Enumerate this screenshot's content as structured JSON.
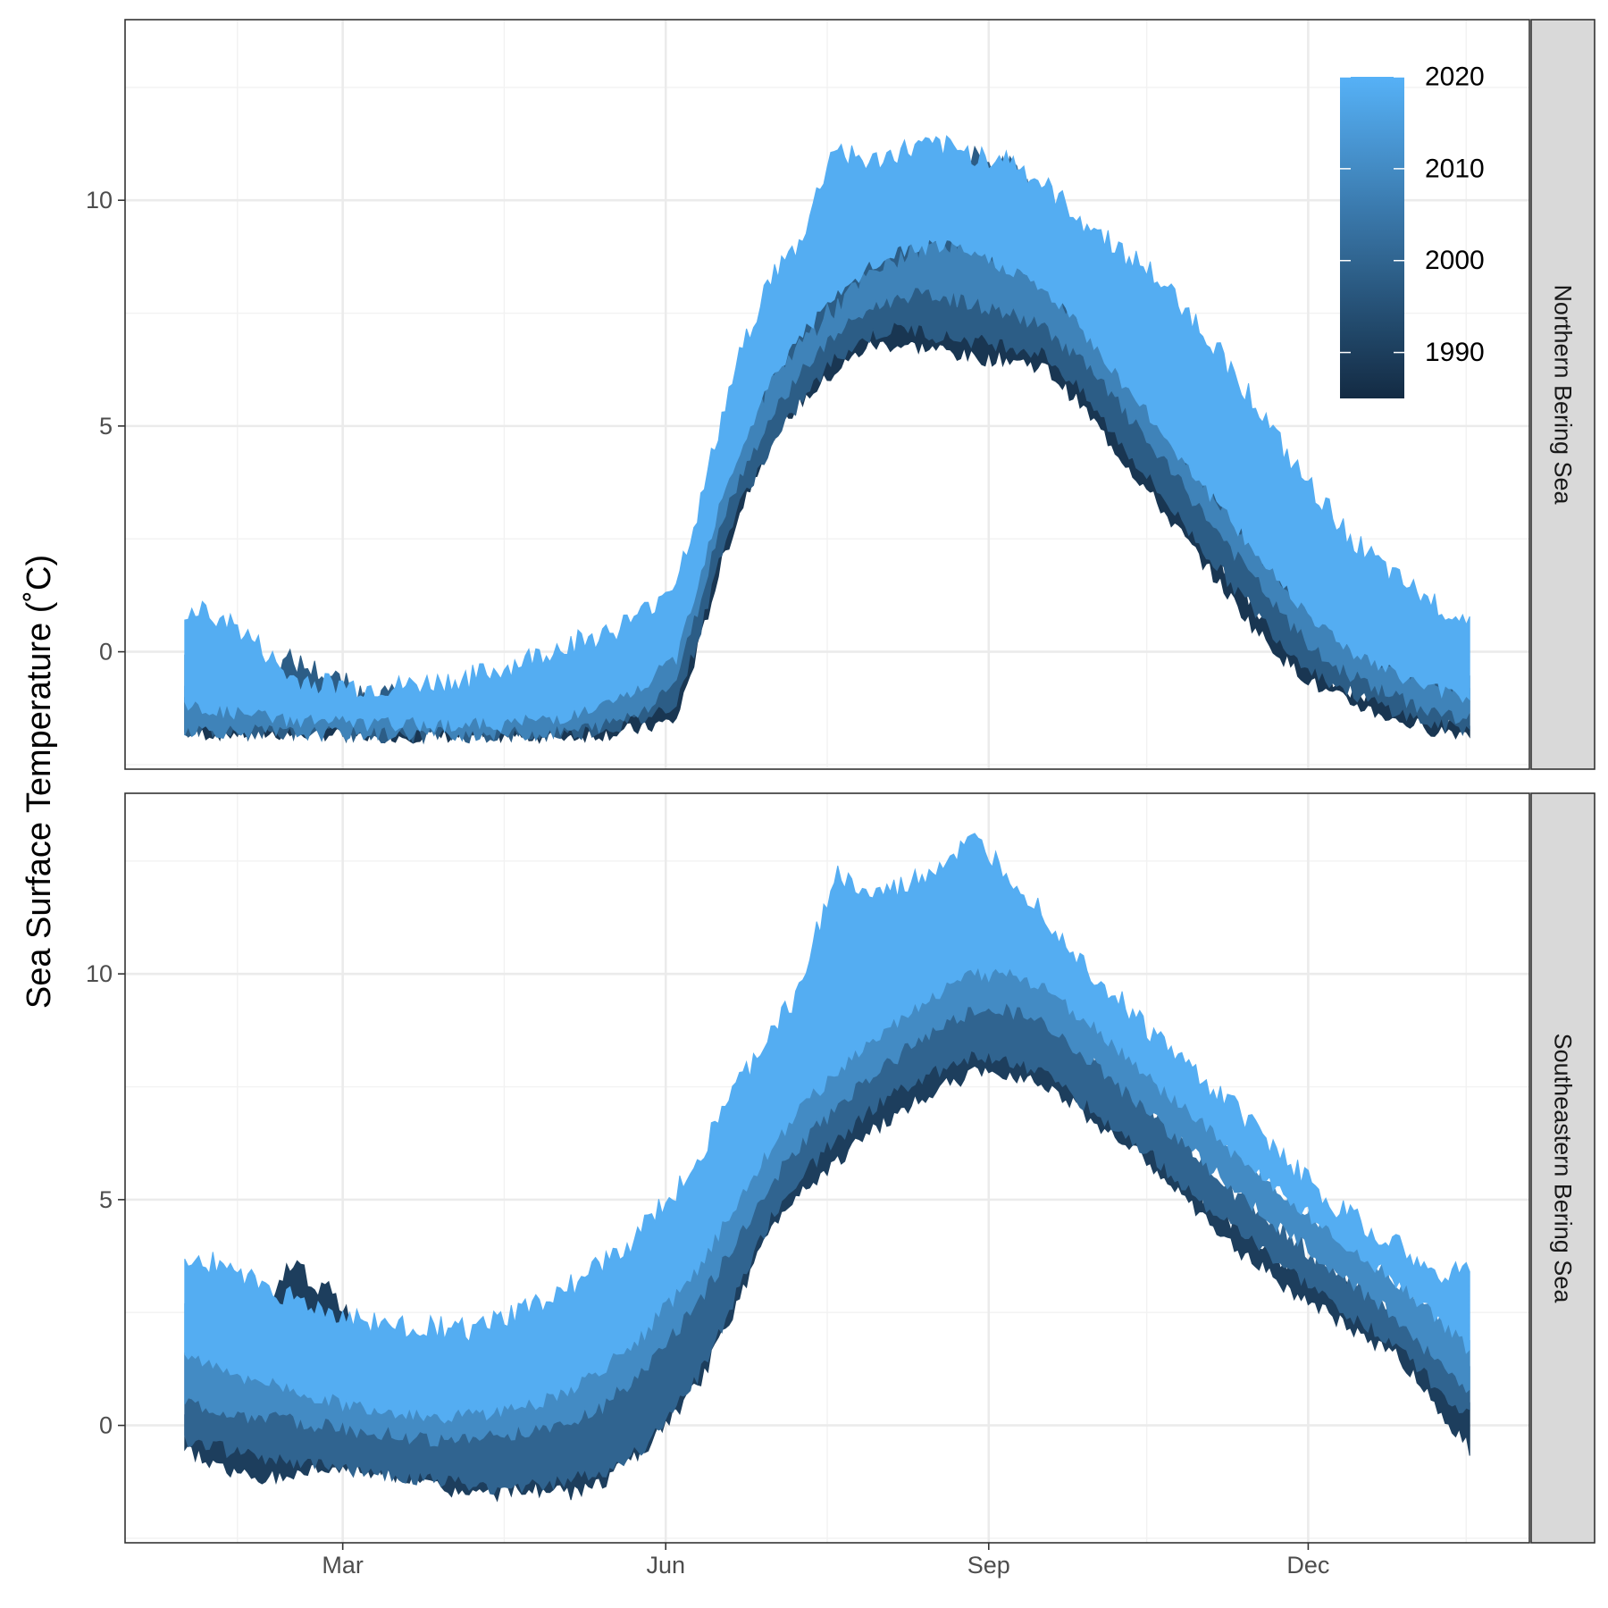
{
  "chart_data": {
    "type": "area",
    "title": "",
    "xlabel": "",
    "ylabel": "Sea Surface Temperature (˚C)",
    "x_tick_labels": [
      "Mar",
      "Jun",
      "Sep",
      "Dec"
    ],
    "x_tick_days": [
      60,
      152,
      244,
      335
    ],
    "x_minor_days": [
      30,
      106,
      198,
      289,
      380
    ],
    "xlim_day_of_year": [
      -2,
      398
    ],
    "x_data_range_day_of_year": [
      15,
      381
    ],
    "y_ticks": [
      0,
      5,
      10
    ],
    "y_minor_ticks": [
      -2.5,
      2.5,
      7.5,
      12.5
    ],
    "ylim": [
      -2.6,
      14
    ],
    "grid": true,
    "color_scale": {
      "title": "",
      "variable": "year",
      "breaks": [
        1990,
        2000,
        2010,
        2020
      ],
      "range": [
        1985,
        2020
      ],
      "low_color": "#132b43",
      "high_color": "#56b1f7",
      "legend_position": "top-right"
    },
    "description": "",
    "panels": [
      {
        "region": "Northern Bering Sea",
        "series": [
          {
            "x": [
              15,
              25,
              35,
              45,
              55,
              65,
              75,
              85,
              95,
              105,
              115,
              125,
              135,
              145,
              155,
              162,
              168,
              175,
              182,
              190,
              200,
              210,
              220,
              230,
              240,
              250,
              260,
              270,
              280,
              290,
              300,
              310,
              320,
              330,
              340,
              350,
              360,
              370,
              381
            ],
            "envelope": [
              {
                "year": 1988,
                "lower": [
                  -1.8,
                  -1.8,
                  -1.8,
                  -1.8,
                  -1.8,
                  -1.85,
                  -1.85,
                  -1.85,
                  -1.85,
                  -1.85,
                  -1.85,
                  -1.85,
                  -1.8,
                  -1.7,
                  -1.5,
                  0.3,
                  2.0,
                  3.5,
                  4.8,
                  5.5,
                  6.2,
                  6.8,
                  6.8,
                  6.7,
                  6.5,
                  6.5,
                  6.3,
                  5.5,
                  4.5,
                  3.5,
                  2.5,
                  1.5,
                  0.5,
                  -0.3,
                  -0.9,
                  -1.2,
                  -1.5,
                  -1.7,
                  -1.8
                ],
                "upper": [
                  -1.0,
                  -0.8,
                  -0.7,
                  -0.6,
                  -0.9,
                  -1.1,
                  -1.2,
                  -1.3,
                  -1.4,
                  -1.4,
                  -1.3,
                  -1.2,
                  -1.1,
                  -0.9,
                  -0.6,
                  1.0,
                  2.8,
                  4.2,
                  5.5,
                  6.3,
                  7.0,
                  7.6,
                  8.0,
                  8.2,
                  7.9,
                  7.6,
                  7.0,
                  6.2,
                  5.2,
                  4.2,
                  3.1,
                  2.0,
                  1.0,
                  0.1,
                  -0.5,
                  -0.9,
                  -1.2,
                  -1.4,
                  -1.5
                ]
              },
              {
                "year": 1998,
                "lower": [
                  -1.75,
                  -1.75,
                  -1.8,
                  -1.8,
                  -1.8,
                  -1.85,
                  -1.85,
                  -1.85,
                  -1.85,
                  -1.85,
                  -1.85,
                  -1.8,
                  -1.7,
                  -1.5,
                  -1.1,
                  0.5,
                  2.3,
                  3.6,
                  4.5,
                  5.5,
                  6.5,
                  7.0,
                  7.2,
                  7.0,
                  6.9,
                  6.8,
                  6.6,
                  5.8,
                  4.8,
                  3.8,
                  2.8,
                  1.8,
                  0.9,
                  0.0,
                  -0.6,
                  -1.0,
                  -1.3,
                  -1.6,
                  -1.7
                ],
                "upper": [
                  0.0,
                  -0.4,
                  -0.6,
                  -0.2,
                  -0.5,
                  -0.9,
                  -1.0,
                  -1.1,
                  -1.2,
                  -1.2,
                  -1.1,
                  -1.0,
                  -0.8,
                  -0.4,
                  0.3,
                  2.2,
                  4.0,
                  5.5,
                  6.8,
                  7.5,
                  8.2,
                  8.8,
                  9.4,
                  10.6,
                  11.0,
                  10.7,
                  9.8,
                  8.8,
                  7.6,
                  6.5,
                  5.3,
                  4.2,
                  3.1,
                  2.1,
                  1.2,
                  0.6,
                  0.2,
                  -0.2,
                  -0.4
                ]
              },
              {
                "year": 2008,
                "lower": [
                  -1.7,
                  -1.75,
                  -1.75,
                  -1.8,
                  -1.8,
                  -1.8,
                  -1.8,
                  -1.8,
                  -1.8,
                  -1.8,
                  -1.8,
                  -1.75,
                  -1.6,
                  -1.3,
                  -0.6,
                  1.2,
                  3.0,
                  4.2,
                  5.2,
                  6.2,
                  7.0,
                  7.6,
                  7.9,
                  7.9,
                  7.7,
                  7.5,
                  7.2,
                  6.5,
                  5.6,
                  4.6,
                  3.6,
                  2.6,
                  1.6,
                  0.6,
                  -0.2,
                  -0.6,
                  -1.0,
                  -1.3,
                  -1.5
                ],
                "upper": [
                  -0.6,
                  -0.7,
                  -0.9,
                  -1.0,
                  -1.1,
                  -1.2,
                  -1.3,
                  -1.3,
                  -1.3,
                  -1.2,
                  -1.1,
                  -0.9,
                  -0.6,
                  -0.2,
                  0.6,
                  2.2,
                  3.8,
                  5.0,
                  6.0,
                  6.8,
                  7.6,
                  8.3,
                  8.8,
                  9.1,
                  9.0,
                  8.7,
                  8.2,
                  7.4,
                  6.4,
                  5.4,
                  4.3,
                  3.3,
                  2.3,
                  1.4,
                  0.7,
                  0.1,
                  -0.3,
                  -0.7,
                  -1.0
                ]
              },
              {
                "year": 2019,
                "lower": [
                  -1.2,
                  -1.3,
                  -1.4,
                  -1.5,
                  -1.5,
                  -1.6,
                  -1.6,
                  -1.6,
                  -1.6,
                  -1.6,
                  -1.5,
                  -1.4,
                  -1.2,
                  -0.8,
                  -0.1,
                  1.8,
                  3.5,
                  4.8,
                  6.0,
                  7.0,
                  7.8,
                  8.5,
                  8.9,
                  9.0,
                  8.8,
                  8.5,
                  8.0,
                  7.2,
                  6.2,
                  5.2,
                  4.2,
                  3.2,
                  2.2,
                  1.3,
                  0.5,
                  -0.1,
                  -0.5,
                  -0.8,
                  -1.0
                ],
                "upper": [
                  0.9,
                  0.8,
                  0.2,
                  -0.6,
                  -0.7,
                  -0.8,
                  -0.8,
                  -0.7,
                  -0.6,
                  -0.4,
                  -0.1,
                  0.2,
                  0.4,
                  0.8,
                  1.6,
                  3.3,
                  5.2,
                  7.0,
                  8.3,
                  9.0,
                  11.2,
                  10.8,
                  11.1,
                  11.2,
                  11.0,
                  10.9,
                  10.3,
                  9.6,
                  9.0,
                  8.4,
                  7.6,
                  6.6,
                  5.5,
                  4.2,
                  3.2,
                  2.3,
                  1.6,
                  1.1,
                  0.7
                ]
              }
            ]
          }
        ]
      },
      {
        "region": "Southeastern Bering Sea",
        "series": [
          {
            "x": [
              15,
              25,
              35,
              45,
              55,
              65,
              75,
              85,
              95,
              105,
              115,
              125,
              135,
              145,
              155,
              162,
              168,
              175,
              182,
              190,
              200,
              210,
              220,
              230,
              240,
              250,
              260,
              270,
              280,
              290,
              300,
              310,
              320,
              330,
              340,
              350,
              360,
              370,
              381
            ],
            "envelope": [
              {
                "year": 1990,
                "lower": [
                  -0.5,
                  -0.9,
                  -1.2,
                  -1.1,
                  -0.9,
                  -1.0,
                  -1.1,
                  -1.3,
                  -1.5,
                  -1.5,
                  -1.4,
                  -1.5,
                  -1.2,
                  -0.6,
                  0.3,
                  1.0,
                  2.0,
                  3.2,
                  4.4,
                  5.2,
                  5.8,
                  6.5,
                  7.0,
                  7.5,
                  7.8,
                  7.8,
                  7.6,
                  7.0,
                  6.4,
                  5.8,
                  5.0,
                  4.2,
                  3.6,
                  3.0,
                  2.5,
                  2.0,
                  1.6,
                  0.6,
                  -0.5
                ],
                "upper": [
                  0.1,
                  0.0,
                  1.5,
                  3.6,
                  3.0,
                  2.2,
                  1.9,
                  1.7,
                  1.5,
                  1.4,
                  1.6,
                  2.0,
                  2.6,
                  3.3,
                  4.2,
                  4.9,
                  5.6,
                  6.3,
                  7.0,
                  7.4,
                  7.8,
                  8.2,
                  8.6,
                  9.0,
                  9.1,
                  8.9,
                  8.5,
                  7.8,
                  7.1,
                  6.3,
                  5.5,
                  4.7,
                  4.1,
                  3.6,
                  3.2,
                  2.8,
                  2.4,
                  1.5,
                  0.6
                ]
              },
              {
                "year": 2000,
                "lower": [
                  -0.3,
                  -0.5,
                  -0.7,
                  -0.8,
                  -0.9,
                  -1.0,
                  -1.1,
                  -1.2,
                  -1.3,
                  -1.4,
                  -1.3,
                  -1.2,
                  -1.0,
                  -0.5,
                  0.4,
                  1.2,
                  2.2,
                  3.4,
                  4.6,
                  5.5,
                  6.3,
                  7.0,
                  7.5,
                  7.9,
                  8.2,
                  8.1,
                  7.8,
                  7.2,
                  6.6,
                  6.0,
                  5.3,
                  4.6,
                  4.0,
                  3.4,
                  2.8,
                  2.3,
                  1.8,
                  1.0,
                  0.2
                ],
                "upper": [
                  1.8,
                  1.7,
                  1.5,
                  1.2,
                  1.0,
                  0.8,
                  0.7,
                  0.6,
                  0.6,
                  0.7,
                  0.9,
                  1.2,
                  1.7,
                  2.4,
                  3.3,
                  4.0,
                  4.8,
                  5.6,
                  6.4,
                  7.0,
                  7.6,
                  8.2,
                  8.8,
                  9.4,
                  9.8,
                  9.7,
                  9.3,
                  8.6,
                  7.9,
                  7.1,
                  6.3,
                  5.5,
                  4.8,
                  4.2,
                  3.6,
                  3.1,
                  2.6,
                  2.0,
                  1.2
                ]
              },
              {
                "year": 2010,
                "lower": [
                  0.5,
                  0.3,
                  0.2,
                  0.1,
                  0.0,
                  -0.1,
                  -0.2,
                  -0.3,
                  -0.3,
                  -0.2,
                  -0.1,
                  0.1,
                  0.5,
                  1.2,
                  2.1,
                  2.8,
                  3.6,
                  4.5,
                  5.4,
                  6.2,
                  7.0,
                  7.7,
                  8.3,
                  8.8,
                  9.2,
                  9.2,
                  8.9,
                  8.3,
                  7.6,
                  6.9,
                  6.2,
                  5.5,
                  4.8,
                  4.2,
                  3.6,
                  3.0,
                  2.4,
                  1.6,
                  0.8
                ],
                "upper": [
                  2.6,
                  2.5,
                  2.3,
                  2.0,
                  1.8,
                  1.6,
                  1.5,
                  1.4,
                  1.4,
                  1.5,
                  1.7,
                  2.0,
                  2.5,
                  3.2,
                  4.1,
                  4.8,
                  5.6,
                  6.4,
                  7.2,
                  7.9,
                  8.6,
                  9.3,
                  9.9,
                  10.5,
                  10.9,
                  10.8,
                  10.4,
                  9.7,
                  8.9,
                  8.1,
                  7.3,
                  6.5,
                  5.8,
                  5.1,
                  4.5,
                  3.9,
                  3.3,
                  2.6,
                  1.8
                ]
              },
              {
                "year": 2019,
                "lower": [
                  1.5,
                  1.3,
                  1.0,
                  0.8,
                  0.6,
                  0.4,
                  0.3,
                  0.2,
                  0.2,
                  0.3,
                  0.5,
                  0.8,
                  1.3,
                  2.0,
                  2.9,
                  3.6,
                  4.4,
                  5.3,
                  6.2,
                  7.0,
                  7.8,
                  8.5,
                  9.1,
                  9.6,
                  10.0,
                  10.0,
                  9.7,
                  9.1,
                  8.4,
                  7.7,
                  7.0,
                  6.3,
                  5.6,
                  5.0,
                  4.4,
                  3.8,
                  3.2,
                  2.5,
                  1.7
                ],
                "upper": [
                  3.7,
                  3.6,
                  3.2,
                  2.8,
                  2.5,
                  2.3,
                  2.2,
                  2.2,
                  2.1,
                  2.3,
                  2.7,
                  3.1,
                  3.6,
                  4.3,
                  5.2,
                  6.0,
                  7.0,
                  7.8,
                  8.7,
                  9.6,
                  12.2,
                  11.7,
                  11.9,
                  12.4,
                  12.9,
                  12.2,
                  11.3,
                  10.3,
                  9.5,
                  8.7,
                  8.0,
                  7.3,
                  6.6,
                  5.8,
                  5.0,
                  4.5,
                  4.0,
                  3.3,
                  3.5
                ]
              }
            ]
          }
        ]
      }
    ]
  }
}
